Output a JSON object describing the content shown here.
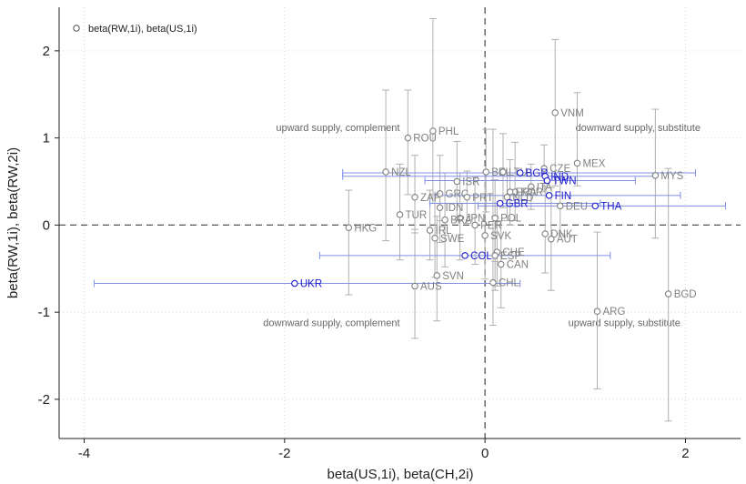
{
  "chart_data": {
    "type": "scatter",
    "xlabel": "beta(US,1i), beta(CH,2i)",
    "ylabel": "beta(RW,1i), beta(RW,2i)",
    "xlim": [
      -4.25,
      2.55
    ],
    "ylim": [
      -2.45,
      2.5
    ],
    "xticks": [
      -4,
      -2,
      0,
      2
    ],
    "yticks": [
      -2,
      -1,
      0,
      1,
      2
    ],
    "xtick_labels": [
      "-4",
      "-2",
      "0",
      "2"
    ],
    "ytick_labels": [
      "-2",
      "-1",
      "0",
      "1",
      "2"
    ],
    "grid": true,
    "reference_lines": {
      "x": 0,
      "y": 0
    },
    "legend": {
      "position": "top-left",
      "label": "beta(RW,1i), beta(US,1i)"
    },
    "annotations": [
      {
        "text": "upward supply, complement",
        "x": -0.85,
        "y": 1.12
      },
      {
        "text": "downward supply, substitute",
        "x": 2.15,
        "y": 1.12
      },
      {
        "text": "downward supply, complement",
        "x": -0.85,
        "y": -1.12
      },
      {
        "text": "upward supply, substitute",
        "x": 1.95,
        "y": -1.12
      }
    ],
    "colors": {
      "gray_series": "#808080",
      "gray_error": "#b0b0b0",
      "blue_series": "#1a1acc",
      "blue_error": "#7f8fe8",
      "annotation": "#666666"
    },
    "series": [
      {
        "name": "beta(RW,1i), beta(US,1i)",
        "color": "#808080",
        "error_direction": "vertical",
        "points": [
          {
            "label": "VNM",
            "x": 0.7,
            "y": 1.29,
            "lo": 0.45,
            "hi": 2.13
          },
          {
            "label": "PHL",
            "x": -0.52,
            "y": 1.08,
            "lo": 0.25,
            "hi": 2.37
          },
          {
            "label": "ROU",
            "x": -0.77,
            "y": 1.0,
            "lo": 0.35,
            "hi": 1.55
          },
          {
            "label": "MEX",
            "x": 0.92,
            "y": 0.71,
            "lo": 0.45,
            "hi": 1.52
          },
          {
            "label": "NZL",
            "x": -0.99,
            "y": 0.61,
            "lo": -0.18,
            "hi": 1.55
          },
          {
            "label": "CZE",
            "x": 0.59,
            "y": 0.65,
            "lo": 0.38,
            "hi": 0.92
          },
          {
            "label": "MYS",
            "x": 1.7,
            "y": 0.57,
            "lo": -0.15,
            "hi": 1.33
          },
          {
            "label": "ISR",
            "x": -0.28,
            "y": 0.5,
            "lo": 0.05,
            "hi": 0.96
          },
          {
            "label": "ITA",
            "x": 0.46,
            "y": 0.44,
            "lo": 0.18,
            "hi": 0.7
          },
          {
            "label": "KOR",
            "x": 0.3,
            "y": 0.38,
            "lo": 0.05,
            "hi": 0.95
          },
          {
            "label": "GRC",
            "x": -0.45,
            "y": 0.36,
            "lo": 0.05,
            "hi": 0.8
          },
          {
            "label": "ZAF",
            "x": -0.7,
            "y": 0.32,
            "lo": -0.09,
            "hi": 0.8
          },
          {
            "label": "PRT",
            "x": -0.18,
            "y": 0.32,
            "lo": 0.02,
            "hi": 0.62
          },
          {
            "label": "NLD",
            "x": 0.22,
            "y": 0.32,
            "lo": 0.05,
            "hi": 0.6
          },
          {
            "label": "IDN",
            "x": -0.45,
            "y": 0.2,
            "lo": -0.2,
            "hi": 0.6
          },
          {
            "label": "DEU",
            "x": 0.75,
            "y": 0.22,
            "lo": -0.1,
            "hi": 0.55
          },
          {
            "label": "TUR",
            "x": -0.85,
            "y": 0.12,
            "lo": -0.4,
            "hi": 0.7
          },
          {
            "label": "POL",
            "x": 0.1,
            "y": 0.08,
            "lo": -0.42,
            "hi": 0.52
          },
          {
            "label": "JPN",
            "x": -0.25,
            "y": 0.08,
            "lo": -0.4,
            "hi": 0.6
          },
          {
            "label": "BRA",
            "x": -0.4,
            "y": 0.06,
            "lo": -0.48,
            "hi": 0.6
          },
          {
            "label": "PER",
            "x": -0.1,
            "y": 0.0,
            "lo": -0.45,
            "hi": 0.55
          },
          {
            "label": "HKG",
            "x": -1.36,
            "y": -0.03,
            "lo": -0.8,
            "hi": 0.4
          },
          {
            "label": "IRL",
            "x": -0.55,
            "y": -0.06,
            "lo": -0.4,
            "hi": 0.4
          },
          {
            "label": "SVK",
            "x": 0.0,
            "y": -0.12,
            "lo": -0.62,
            "hi": 0.6
          },
          {
            "label": "DNK",
            "x": 0.6,
            "y": -0.1,
            "lo": -0.55,
            "hi": 0.45
          },
          {
            "label": "SWE",
            "x": -0.5,
            "y": -0.15,
            "lo": -0.6,
            "hi": 0.35
          },
          {
            "label": "AUT",
            "x": 0.66,
            "y": -0.16,
            "lo": -0.75,
            "hi": 0.43
          },
          {
            "label": "CHE",
            "x": 0.12,
            "y": -0.31,
            "lo": -0.7,
            "hi": 0.25
          },
          {
            "label": "ESP",
            "x": 0.1,
            "y": -0.35,
            "lo": -0.75,
            "hi": 0.1
          },
          {
            "label": "CAN",
            "x": 0.16,
            "y": -0.45,
            "lo": -0.95,
            "hi": 0.05
          },
          {
            "label": "SVN",
            "x": -0.48,
            "y": -0.58,
            "lo": -1.1,
            "hi": 0.1
          },
          {
            "label": "CHL",
            "x": 0.08,
            "y": -0.66,
            "lo": -1.15,
            "hi": 1.1
          },
          {
            "label": "AUS",
            "x": -0.7,
            "y": -0.7,
            "lo": -1.3,
            "hi": -0.05
          },
          {
            "label": "ARG",
            "x": 1.12,
            "y": -0.99,
            "lo": -1.88,
            "hi": -0.08
          },
          {
            "label": "BGD",
            "x": 1.83,
            "y": -0.79,
            "lo": -2.25,
            "hi": 0.65
          },
          {
            "label": "BEL",
            "x": 0.01,
            "y": 0.61,
            "lo": 0.15,
            "hi": 1.1
          },
          {
            "label": "LTU",
            "x": 0.18,
            "y": 0.61,
            "lo": 0.2,
            "hi": 1.05
          },
          {
            "label": "FRA",
            "x": 0.25,
            "y": 0.38,
            "lo": 0.0,
            "hi": 0.75
          }
        ]
      },
      {
        "name": "",
        "color": "#1a1acc",
        "error_direction": "horizontal",
        "points": [
          {
            "label": "BGR",
            "x": 0.35,
            "y": 0.6,
            "lo": -1.42,
            "hi": 2.1
          },
          {
            "label": "IND",
            "x": 0.6,
            "y": 0.56,
            "lo": -1.42,
            "hi": 1.7
          },
          {
            "label": "TWN",
            "x": 0.62,
            "y": 0.51,
            "lo": -0.6,
            "hi": 1.5
          },
          {
            "label": "FIN",
            "x": 0.64,
            "y": 0.34,
            "lo": -0.5,
            "hi": 1.95
          },
          {
            "label": "GBR",
            "x": 0.15,
            "y": 0.25,
            "lo": -0.55,
            "hi": 1.15
          },
          {
            "label": "THA",
            "x": 1.1,
            "y": 0.22,
            "lo": -0.07,
            "hi": 2.4
          },
          {
            "label": "COL",
            "x": -0.2,
            "y": -0.35,
            "lo": -1.65,
            "hi": 1.25
          },
          {
            "label": "UKR",
            "x": -1.9,
            "y": -0.67,
            "lo": -3.9,
            "hi": 0.35
          }
        ]
      }
    ]
  }
}
